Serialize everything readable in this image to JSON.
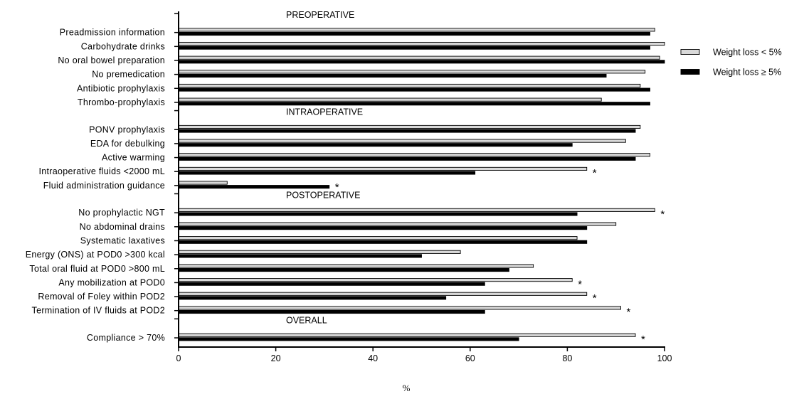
{
  "chart_data": {
    "type": "bar",
    "orientation": "horizontal",
    "xlabel": "%",
    "xlim": [
      0,
      100
    ],
    "xticks": [
      0,
      20,
      40,
      60,
      80,
      100
    ],
    "grid": false,
    "legend_position": "right",
    "series": [
      {
        "name": "Weight loss < 5%",
        "color": "#d9d9d9",
        "edge": "#000000"
      },
      {
        "name": "Weight loss ≥ 5%",
        "color": "#000000",
        "edge": "#000000"
      }
    ],
    "sections": [
      {
        "title": "PREOPERATIVE",
        "items": [
          {
            "label": "Preadmission information",
            "values": [
              98,
              97
            ],
            "sig": false
          },
          {
            "label": "Carbohydrate drinks",
            "values": [
              100,
              97
            ],
            "sig": false
          },
          {
            "label": "No oral bowel preparation",
            "values": [
              99,
              100
            ],
            "sig": false
          },
          {
            "label": "No premedication",
            "values": [
              96,
              88
            ],
            "sig": false
          },
          {
            "label": "Antibiotic prophylaxis",
            "values": [
              95,
              97
            ],
            "sig": false
          },
          {
            "label": "Thrombo-prophylaxis",
            "values": [
              87,
              97
            ],
            "sig": false
          }
        ]
      },
      {
        "title": "INTRAOPERATIVE",
        "items": [
          {
            "label": "PONV prophylaxis",
            "values": [
              95,
              94
            ],
            "sig": false
          },
          {
            "label": "EDA for debulking",
            "values": [
              92,
              81
            ],
            "sig": false
          },
          {
            "label": "Active warming",
            "values": [
              97,
              94
            ],
            "sig": false
          },
          {
            "label": "Intraoperative fluids <2000 mL",
            "values": [
              84,
              61
            ],
            "sig": true
          },
          {
            "label": "Fluid administration guidance",
            "values": [
              10,
              31
            ],
            "sig": true
          }
        ]
      },
      {
        "title": "POSTOPERATIVE",
        "items": [
          {
            "label": "No prophylactic NGT",
            "values": [
              98,
              82
            ],
            "sig": true
          },
          {
            "label": "No abdominal drains",
            "values": [
              90,
              84
            ],
            "sig": false
          },
          {
            "label": "Systematic laxatives",
            "values": [
              82,
              84
            ],
            "sig": false
          },
          {
            "label": "Energy (ONS) at POD0 >300 kcal",
            "values": [
              58,
              50
            ],
            "sig": false
          },
          {
            "label": "Total oral fluid at POD0 >800 mL",
            "values": [
              73,
              68
            ],
            "sig": false
          },
          {
            "label": "Any mobilization at POD0",
            "values": [
              81,
              63
            ],
            "sig": true
          },
          {
            "label": "Removal of Foley within POD2",
            "values": [
              84,
              55
            ],
            "sig": true
          },
          {
            "label": "Termination of IV fluids at POD2",
            "values": [
              91,
              63
            ],
            "sig": true
          }
        ]
      },
      {
        "title": "OVERALL",
        "items": [
          {
            "label": "Compliance > 70%",
            "values": [
              94,
              70
            ],
            "sig": true
          }
        ]
      }
    ],
    "significance_marker": "*"
  }
}
